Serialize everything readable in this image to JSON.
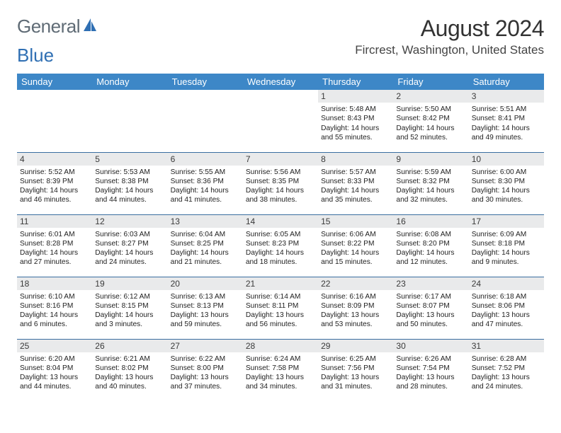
{
  "logo": {
    "word1": "General",
    "word2": "Blue"
  },
  "title": "August 2024",
  "location": "Fircrest, Washington, United States",
  "header_bg": "#3d87c7",
  "daynum_bg": "#e9eaeb",
  "rule_color": "#3a6ea0",
  "weekdays": [
    "Sunday",
    "Monday",
    "Tuesday",
    "Wednesday",
    "Thursday",
    "Friday",
    "Saturday"
  ],
  "weeks": [
    [
      null,
      null,
      null,
      null,
      {
        "n": "1",
        "sr": "5:48 AM",
        "ss": "8:43 PM",
        "dl": "14 hours and 55 minutes."
      },
      {
        "n": "2",
        "sr": "5:50 AM",
        "ss": "8:42 PM",
        "dl": "14 hours and 52 minutes."
      },
      {
        "n": "3",
        "sr": "5:51 AM",
        "ss": "8:41 PM",
        "dl": "14 hours and 49 minutes."
      }
    ],
    [
      {
        "n": "4",
        "sr": "5:52 AM",
        "ss": "8:39 PM",
        "dl": "14 hours and 46 minutes."
      },
      {
        "n": "5",
        "sr": "5:53 AM",
        "ss": "8:38 PM",
        "dl": "14 hours and 44 minutes."
      },
      {
        "n": "6",
        "sr": "5:55 AM",
        "ss": "8:36 PM",
        "dl": "14 hours and 41 minutes."
      },
      {
        "n": "7",
        "sr": "5:56 AM",
        "ss": "8:35 PM",
        "dl": "14 hours and 38 minutes."
      },
      {
        "n": "8",
        "sr": "5:57 AM",
        "ss": "8:33 PM",
        "dl": "14 hours and 35 minutes."
      },
      {
        "n": "9",
        "sr": "5:59 AM",
        "ss": "8:32 PM",
        "dl": "14 hours and 32 minutes."
      },
      {
        "n": "10",
        "sr": "6:00 AM",
        "ss": "8:30 PM",
        "dl": "14 hours and 30 minutes."
      }
    ],
    [
      {
        "n": "11",
        "sr": "6:01 AM",
        "ss": "8:28 PM",
        "dl": "14 hours and 27 minutes."
      },
      {
        "n": "12",
        "sr": "6:03 AM",
        "ss": "8:27 PM",
        "dl": "14 hours and 24 minutes."
      },
      {
        "n": "13",
        "sr": "6:04 AM",
        "ss": "8:25 PM",
        "dl": "14 hours and 21 minutes."
      },
      {
        "n": "14",
        "sr": "6:05 AM",
        "ss": "8:23 PM",
        "dl": "14 hours and 18 minutes."
      },
      {
        "n": "15",
        "sr": "6:06 AM",
        "ss": "8:22 PM",
        "dl": "14 hours and 15 minutes."
      },
      {
        "n": "16",
        "sr": "6:08 AM",
        "ss": "8:20 PM",
        "dl": "14 hours and 12 minutes."
      },
      {
        "n": "17",
        "sr": "6:09 AM",
        "ss": "8:18 PM",
        "dl": "14 hours and 9 minutes."
      }
    ],
    [
      {
        "n": "18",
        "sr": "6:10 AM",
        "ss": "8:16 PM",
        "dl": "14 hours and 6 minutes."
      },
      {
        "n": "19",
        "sr": "6:12 AM",
        "ss": "8:15 PM",
        "dl": "14 hours and 3 minutes."
      },
      {
        "n": "20",
        "sr": "6:13 AM",
        "ss": "8:13 PM",
        "dl": "13 hours and 59 minutes."
      },
      {
        "n": "21",
        "sr": "6:14 AM",
        "ss": "8:11 PM",
        "dl": "13 hours and 56 minutes."
      },
      {
        "n": "22",
        "sr": "6:16 AM",
        "ss": "8:09 PM",
        "dl": "13 hours and 53 minutes."
      },
      {
        "n": "23",
        "sr": "6:17 AM",
        "ss": "8:07 PM",
        "dl": "13 hours and 50 minutes."
      },
      {
        "n": "24",
        "sr": "6:18 AM",
        "ss": "8:06 PM",
        "dl": "13 hours and 47 minutes."
      }
    ],
    [
      {
        "n": "25",
        "sr": "6:20 AM",
        "ss": "8:04 PM",
        "dl": "13 hours and 44 minutes."
      },
      {
        "n": "26",
        "sr": "6:21 AM",
        "ss": "8:02 PM",
        "dl": "13 hours and 40 minutes."
      },
      {
        "n": "27",
        "sr": "6:22 AM",
        "ss": "8:00 PM",
        "dl": "13 hours and 37 minutes."
      },
      {
        "n": "28",
        "sr": "6:24 AM",
        "ss": "7:58 PM",
        "dl": "13 hours and 34 minutes."
      },
      {
        "n": "29",
        "sr": "6:25 AM",
        "ss": "7:56 PM",
        "dl": "13 hours and 31 minutes."
      },
      {
        "n": "30",
        "sr": "6:26 AM",
        "ss": "7:54 PM",
        "dl": "13 hours and 28 minutes."
      },
      {
        "n": "31",
        "sr": "6:28 AM",
        "ss": "7:52 PM",
        "dl": "13 hours and 24 minutes."
      }
    ]
  ],
  "labels": {
    "sunrise": "Sunrise:",
    "sunset": "Sunset:",
    "daylight": "Daylight:"
  }
}
